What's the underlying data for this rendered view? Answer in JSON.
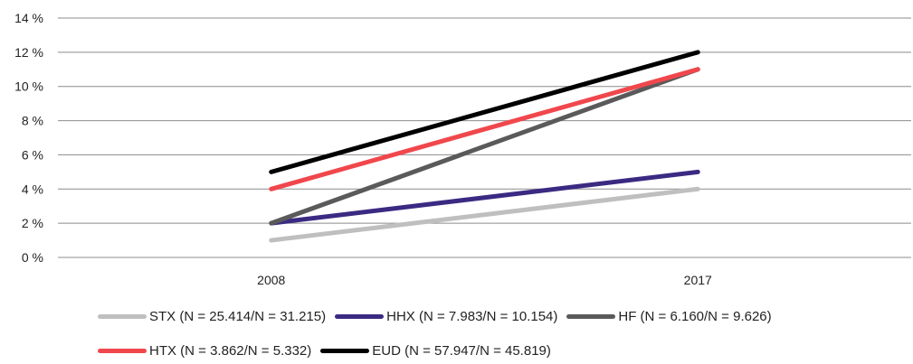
{
  "chart_data": {
    "type": "line",
    "categories": [
      "2008",
      "2017"
    ],
    "y_ticks": [
      "0 %",
      "2 %",
      "4 %",
      "6 %",
      "8 %",
      "10 %",
      "12 %",
      "14 %"
    ],
    "ylim": [
      0,
      14
    ],
    "y_step": 2,
    "grid": true,
    "legend_position": "bottom",
    "series": [
      {
        "name": "STX (N = 25.414/N = 31.215)",
        "values": [
          1,
          4
        ],
        "color": "#bfbfbf"
      },
      {
        "name": "HHX (N = 7.983/N = 10.154)",
        "values": [
          2,
          5
        ],
        "color": "#3b2a82"
      },
      {
        "name": "HF (N = 6.160/N = 9.626)",
        "values": [
          2,
          11
        ],
        "color": "#5a5a5a"
      },
      {
        "name": "HTX (N = 3.862/N = 5.332)",
        "values": [
          4,
          11
        ],
        "color": "#f0474d"
      },
      {
        "name": "EUD (N = 57.947/N = 45.819)",
        "values": [
          5,
          12
        ],
        "color": "#000000"
      }
    ],
    "legend_rows": [
      [
        0,
        1,
        2
      ],
      [
        3,
        4
      ]
    ]
  }
}
